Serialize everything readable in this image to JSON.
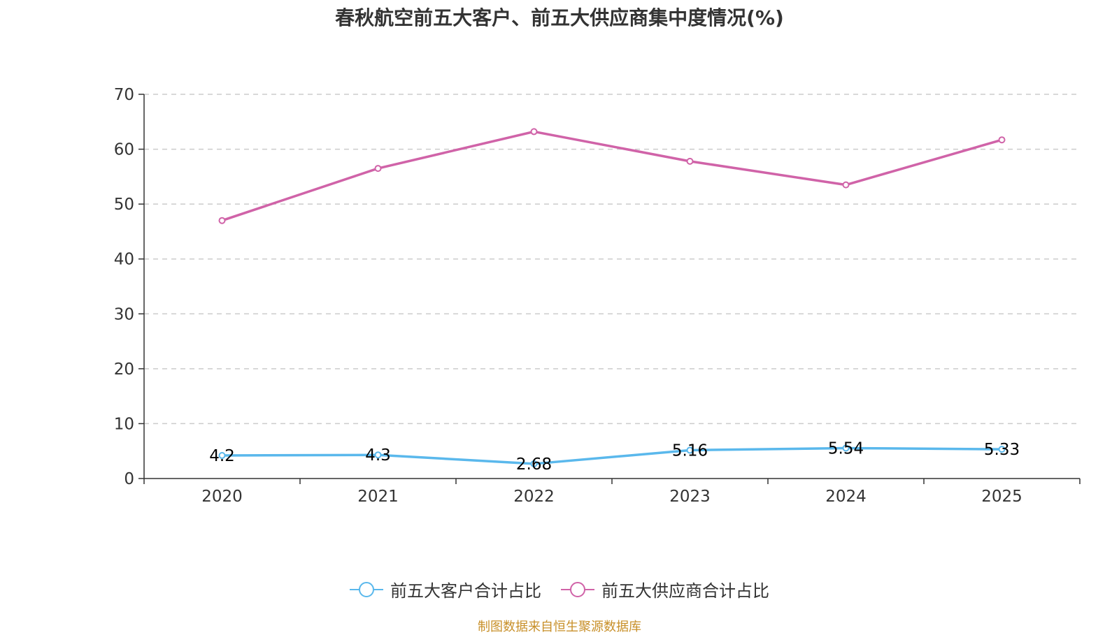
{
  "chart_data": {
    "type": "line",
    "title": "春秋航空前五大客户、前五大供应商集中度情况(%)",
    "categories": [
      "2020",
      "2021",
      "2022",
      "2023",
      "2024",
      "2025"
    ],
    "ylim": [
      0,
      70
    ],
    "yticks": [
      0,
      10,
      20,
      30,
      40,
      50,
      60,
      70
    ],
    "grid": true,
    "legend_position": "bottom",
    "series": [
      {
        "name": "前五大客户合计占比",
        "color": "#5ab8ec",
        "values": [
          4.2,
          4.3,
          2.68,
          5.16,
          5.54,
          5.33
        ],
        "labels": [
          "4.2",
          "4.3",
          "2.68",
          "5.16",
          "5.54",
          "5.33"
        ]
      },
      {
        "name": "前五大供应商合计占比",
        "color": "#d063a8",
        "values": [
          47.0,
          56.5,
          63.2,
          57.8,
          53.5,
          61.7
        ]
      }
    ]
  },
  "source": "制图数据来自恒生聚源数据库"
}
